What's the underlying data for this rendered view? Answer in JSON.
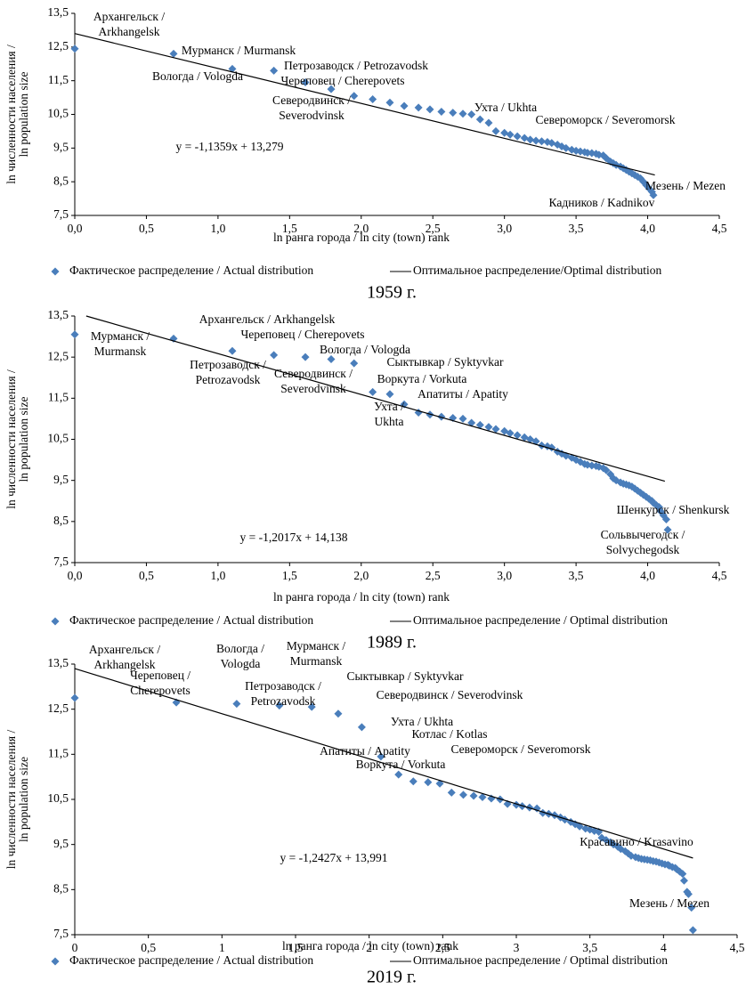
{
  "chart_data": [
    {
      "type": "scatter",
      "caption": "1959 г.",
      "x_label": "ln ранга города / ln city (town) rank",
      "y_label": [
        "ln численности населения /",
        "ln population size"
      ],
      "equation": "y = -1,1359x + 13,279",
      "xlim": [
        0,
        4.5
      ],
      "ylim": [
        7.5,
        13.5
      ],
      "xticks": [
        {
          "value": 0,
          "label": "0,0"
        },
        {
          "value": 0.5,
          "label": "0,5"
        },
        {
          "value": 1,
          "label": "1,0"
        },
        {
          "value": 1.5,
          "label": "1,5"
        },
        {
          "value": 2,
          "label": "2,0"
        },
        {
          "value": 2.5,
          "label": "2,5"
        },
        {
          "value": 3,
          "label": "3,0"
        },
        {
          "value": 3.5,
          "label": "3,5"
        },
        {
          "value": 4,
          "label": "4,0"
        },
        {
          "value": 4.5,
          "label": "4,5"
        }
      ],
      "yticks": [
        {
          "value": 7.5,
          "label": "7,5"
        },
        {
          "value": 8.5,
          "label": "8,5"
        },
        {
          "value": 9.5,
          "label": "9,5"
        },
        {
          "value": 10.5,
          "label": "10,5"
        },
        {
          "value": 11.5,
          "label": "11,5"
        },
        {
          "value": 12.5,
          "label": "12,5"
        },
        {
          "value": 13.5,
          "label": "13,5"
        }
      ],
      "annotations": [
        [
          "Архангельск /",
          "Arkhangelsk"
        ],
        [
          "Мурманск / Murmansk"
        ],
        [
          "Вологда / Vologda"
        ],
        [
          "Петрозаводск / Petrozavodsk"
        ],
        [
          "Череповец / Cherepovets"
        ],
        [
          "Северодвинск /",
          "Severodvinsk"
        ],
        [
          "Ухта / Ukhta"
        ],
        [
          "Североморск / Severomorsk"
        ],
        [
          "Мезень / Mezen"
        ],
        [
          "Кадников / Kadnikov"
        ]
      ],
      "series": [
        {
          "name": "Фактическое распределение / Actual distribution",
          "style": "markers",
          "color": "#4a7ebb",
          "x": [
            0,
            0.69,
            1.1,
            1.39,
            1.61,
            1.79,
            1.95,
            2.08,
            2.2,
            2.3,
            2.4,
            2.48,
            2.56,
            2.64,
            2.71,
            2.77,
            2.83,
            2.89,
            2.94,
            3.0,
            3.04,
            3.09,
            3.14,
            3.18,
            3.22,
            3.26,
            3.3,
            3.33,
            3.37,
            3.4,
            3.43,
            3.47,
            3.5,
            3.53,
            3.56,
            3.58,
            3.61,
            3.64,
            3.66,
            3.69,
            3.71,
            3.74,
            3.76,
            3.78,
            3.81,
            3.83,
            3.85,
            3.87,
            3.89,
            3.91,
            3.93,
            3.95,
            3.97,
            3.99,
            4.01,
            4.03,
            4.04
          ],
          "values": [
            12.45,
            12.3,
            11.85,
            11.8,
            11.45,
            11.25,
            11.05,
            10.95,
            10.85,
            10.75,
            10.7,
            10.65,
            10.58,
            10.55,
            10.52,
            10.5,
            10.35,
            10.25,
            10.0,
            9.95,
            9.9,
            9.85,
            9.8,
            9.75,
            9.72,
            9.7,
            9.68,
            9.65,
            9.6,
            9.55,
            9.5,
            9.45,
            9.42,
            9.4,
            9.38,
            9.36,
            9.35,
            9.33,
            9.3,
            9.28,
            9.2,
            9.1,
            9.05,
            9.0,
            8.95,
            8.9,
            8.85,
            8.8,
            8.75,
            8.7,
            8.65,
            8.6,
            8.5,
            8.4,
            8.3,
            8.2,
            8.1
          ]
        },
        {
          "name": "Оптимальное распределение/Optimal distribution",
          "style": "line",
          "color": "#000000",
          "x": [
            0,
            4.05
          ],
          "values": [
            12.9,
            8.7
          ]
        }
      ]
    },
    {
      "type": "scatter",
      "caption": "1989 г.",
      "x_label": "ln ранга города / ln city (town) rank",
      "y_label": [
        "ln численности населения /",
        "ln population size"
      ],
      "equation": "y = -1,2017x + 14,138",
      "xlim": [
        0,
        4.5
      ],
      "ylim": [
        7.5,
        13.5
      ],
      "xticks": [
        {
          "value": 0,
          "label": "0,0"
        },
        {
          "value": 0.5,
          "label": "0,5"
        },
        {
          "value": 1,
          "label": "1,0"
        },
        {
          "value": 1.5,
          "label": "1,5"
        },
        {
          "value": 2,
          "label": "2,0"
        },
        {
          "value": 2.5,
          "label": "2,5"
        },
        {
          "value": 3,
          "label": "3,0"
        },
        {
          "value": 3.5,
          "label": "3,5"
        },
        {
          "value": 4,
          "label": "4,0"
        },
        {
          "value": 4.5,
          "label": "4,5"
        }
      ],
      "yticks": [
        {
          "value": 7.5,
          "label": "7,5"
        },
        {
          "value": 8.5,
          "label": "8,5"
        },
        {
          "value": 9.5,
          "label": "9,5"
        },
        {
          "value": 10.5,
          "label": "10,5"
        },
        {
          "value": 11.5,
          "label": "11,5"
        },
        {
          "value": 12.5,
          "label": "12,5"
        },
        {
          "value": 13.5,
          "label": "13,5"
        }
      ],
      "annotations": [
        [
          "Мурманск /",
          "Murmansk"
        ],
        [
          "Архангельск / Arkhangelsk"
        ],
        [
          "Череповец / Cherepovets"
        ],
        [
          "Вологда / Vologda"
        ],
        [
          "Петрозаводск /",
          "Petrozavodsk"
        ],
        [
          "Северодвинск /",
          "Severodvinsk"
        ],
        [
          "Сыктывкар / Syktyvkar"
        ],
        [
          "Воркута / Vorkuta"
        ],
        [
          "Апатиты / Apatity"
        ],
        [
          "Ухта /",
          "Ukhta"
        ],
        [
          "Шенкурск / Shenkursk"
        ],
        [
          "Сольвычегодск /",
          "Solvychegodsk"
        ]
      ],
      "series": [
        {
          "name": "Фактическое распределение / Actual distribution",
          "style": "markers",
          "color": "#4a7ebb",
          "x": [
            0,
            0.69,
            1.1,
            1.39,
            1.61,
            1.79,
            1.95,
            2.08,
            2.2,
            2.3,
            2.4,
            2.48,
            2.56,
            2.64,
            2.71,
            2.77,
            2.83,
            2.89,
            2.94,
            3.0,
            3.04,
            3.09,
            3.14,
            3.18,
            3.22,
            3.26,
            3.3,
            3.33,
            3.37,
            3.4,
            3.43,
            3.47,
            3.5,
            3.53,
            3.56,
            3.58,
            3.61,
            3.64,
            3.66,
            3.69,
            3.71,
            3.74,
            3.76,
            3.78,
            3.81,
            3.83,
            3.85,
            3.87,
            3.89,
            3.91,
            3.93,
            3.95,
            3.97,
            3.99,
            4.01,
            4.03,
            4.04,
            4.06,
            4.08,
            4.09,
            4.11,
            4.13,
            4.14
          ],
          "values": [
            13.05,
            12.95,
            12.65,
            12.55,
            12.5,
            12.45,
            12.35,
            11.65,
            11.6,
            11.35,
            11.15,
            11.1,
            11.05,
            11.02,
            11.0,
            10.9,
            10.85,
            10.8,
            10.75,
            10.7,
            10.65,
            10.6,
            10.55,
            10.5,
            10.45,
            10.35,
            10.33,
            10.3,
            10.2,
            10.15,
            10.1,
            10.05,
            10.0,
            9.95,
            9.9,
            9.88,
            9.86,
            9.85,
            9.83,
            9.8,
            9.75,
            9.65,
            9.55,
            9.5,
            9.45,
            9.42,
            9.4,
            9.38,
            9.35,
            9.3,
            9.25,
            9.2,
            9.15,
            9.1,
            9.05,
            9.0,
            8.95,
            8.9,
            8.85,
            8.75,
            8.65,
            8.55,
            8.3
          ]
        },
        {
          "name": "Оптимальное распределение / Optimal distribution",
          "style": "line",
          "color": "#000000",
          "x": [
            0.08,
            4.12
          ],
          "values": [
            13.5,
            9.48
          ]
        }
      ]
    },
    {
      "type": "scatter",
      "caption": "2019 г.",
      "x_label": "ln ранга города / ln city (town) rank",
      "y_label": [
        "ln численности населения /",
        "ln population size"
      ],
      "equation": "y = -1,2427x + 13,991",
      "xlim": [
        0,
        4.5
      ],
      "ylim": [
        7.5,
        13.5
      ],
      "xticks": [
        0,
        {
          "value": 0.5,
          "label": "0,5"
        },
        1,
        {
          "value": 1.5,
          "label": "1,5"
        },
        2,
        {
          "value": 2.5,
          "label": "2,5"
        },
        3,
        {
          "value": 3.5,
          "label": "3,5"
        },
        4,
        {
          "value": 4.5,
          "label": "4,5"
        }
      ],
      "yticks": [
        {
          "value": 7.5,
          "label": "7,5"
        },
        {
          "value": 8.5,
          "label": "8,5"
        },
        {
          "value": 9.5,
          "label": "9,5"
        },
        {
          "value": 10.5,
          "label": "10,5"
        },
        {
          "value": 11.5,
          "label": "11,5"
        },
        {
          "value": 12.5,
          "label": "12,5"
        },
        {
          "value": 13.5,
          "label": "13,5"
        }
      ],
      "annotations": [
        [
          "Архангельск /",
          "Arkhangelsk"
        ],
        [
          "Вологда /",
          "Vologda"
        ],
        [
          "Мурманск /",
          "Murmansk"
        ],
        [
          "Череповец /",
          "Cherepovets"
        ],
        [
          "Петрозаводск /",
          "Petrozavodsk"
        ],
        [
          "Сыктывкар / Syktyvkar"
        ],
        [
          "Северодвинск / Severodvinsk"
        ],
        [
          "Ухта / Ukhta"
        ],
        [
          "Котлас / Kotlas"
        ],
        [
          "Североморск / Severomorsk"
        ],
        [
          "Апатиты / Apatity"
        ],
        [
          "Воркута / Vorkuta"
        ],
        [
          "Красавино / Krasavino"
        ],
        [
          "Мезень / Mezen"
        ]
      ],
      "series": [
        {
          "name": "Фактическое распределение / Actual distribution",
          "style": "markers",
          "color": "#4a7ebb",
          "x": [
            0,
            0.69,
            1.1,
            1.39,
            1.61,
            1.79,
            1.95,
            2.08,
            2.2,
            2.3,
            2.4,
            2.48,
            2.56,
            2.64,
            2.71,
            2.77,
            2.83,
            2.89,
            2.94,
            3.0,
            3.04,
            3.09,
            3.14,
            3.18,
            3.22,
            3.26,
            3.3,
            3.33,
            3.37,
            3.4,
            3.43,
            3.47,
            3.5,
            3.53,
            3.56,
            3.58,
            3.61,
            3.64,
            3.66,
            3.69,
            3.71,
            3.74,
            3.76,
            3.78,
            3.81,
            3.83,
            3.85,
            3.87,
            3.89,
            3.91,
            3.93,
            3.95,
            3.97,
            3.99,
            4.01,
            4.03,
            4.04,
            4.06,
            4.08,
            4.09,
            4.11,
            4.13,
            4.14,
            4.16,
            4.17,
            4.19,
            4.2
          ],
          "values": [
            12.75,
            12.65,
            12.62,
            12.58,
            12.55,
            12.4,
            12.1,
            11.45,
            11.05,
            10.9,
            10.88,
            10.85,
            10.65,
            10.6,
            10.58,
            10.55,
            10.52,
            10.5,
            10.4,
            10.38,
            10.35,
            10.32,
            10.3,
            10.2,
            10.18,
            10.15,
            10.1,
            10.05,
            10.0,
            9.95,
            9.9,
            9.85,
            9.83,
            9.8,
            9.78,
            9.65,
            9.6,
            9.55,
            9.5,
            9.45,
            9.4,
            9.35,
            9.3,
            9.25,
            9.22,
            9.2,
            9.18,
            9.17,
            9.16,
            9.15,
            9.13,
            9.12,
            9.1,
            9.08,
            9.06,
            9.05,
            9.03,
            9.0,
            8.98,
            8.95,
            8.9,
            8.85,
            8.7,
            8.45,
            8.4,
            8.1,
            7.6
          ]
        },
        {
          "name": "Оптимальное распределение / Optimal distribution",
          "style": "line",
          "color": "#000000",
          "x": [
            0,
            4.2
          ],
          "values": [
            13.4,
            9.2
          ]
        }
      ]
    }
  ]
}
